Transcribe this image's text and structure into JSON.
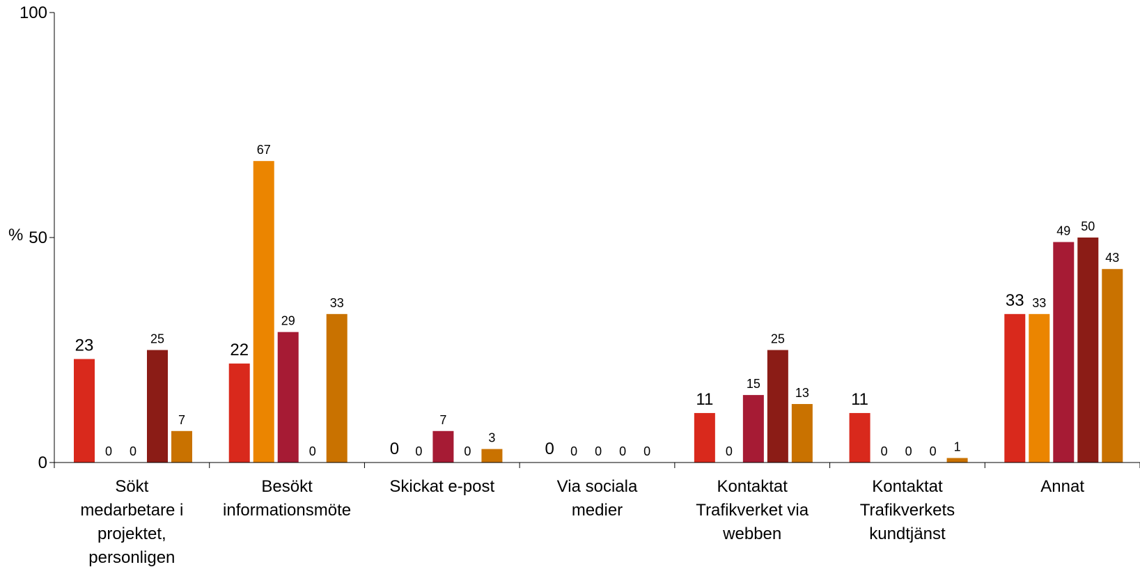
{
  "chart_data": {
    "type": "bar",
    "ylabel": "%",
    "ylim": [
      0,
      100
    ],
    "yticks": [
      "0",
      "50",
      "100"
    ],
    "grid": false,
    "legend": "none",
    "categories": [
      [
        "Sökt",
        "medarbetare i",
        "projektet,",
        "personligen"
      ],
      [
        "Besökt",
        "informationsmöte"
      ],
      [
        "Skickat e-post"
      ],
      [
        "Via sociala",
        "medier"
      ],
      [
        "Kontaktat",
        "Trafikverket via",
        "webben"
      ],
      [
        "Kontaktat",
        "Trafikverkets",
        "kundtjänst"
      ],
      [
        "Annat"
      ]
    ],
    "series": [
      {
        "color": "#d9291c",
        "values": [
          23,
          22,
          0,
          0,
          11,
          11,
          33
        ]
      },
      {
        "color": "#eb8500",
        "values": [
          0,
          67,
          0,
          0,
          0,
          0,
          33
        ]
      },
      {
        "color": "#a61b34",
        "values": [
          0,
          29,
          7,
          0,
          15,
          0,
          49
        ]
      },
      {
        "color": "#8b1c16",
        "values": [
          25,
          0,
          0,
          0,
          25,
          0,
          50
        ]
      },
      {
        "color": "#c97200",
        "values": [
          7,
          33,
          3,
          0,
          13,
          1,
          43
        ]
      }
    ]
  }
}
